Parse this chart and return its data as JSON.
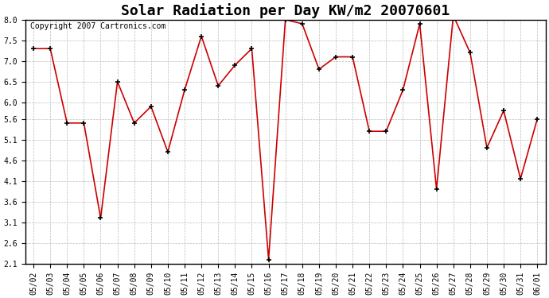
{
  "title": "Solar Radiation per Day KW/m2 20070601",
  "copyright": "Copyright 2007 Cartronics.com",
  "dates": [
    "05/02",
    "05/03",
    "05/04",
    "05/05",
    "05/06",
    "05/07",
    "05/08",
    "05/09",
    "05/10",
    "05/11",
    "05/12",
    "05/13",
    "05/14",
    "05/15",
    "05/16",
    "05/17",
    "05/18",
    "05/19",
    "05/20",
    "05/21",
    "05/22",
    "05/23",
    "05/24",
    "05/25",
    "05/26",
    "05/27",
    "05/28",
    "05/29",
    "05/30",
    "05/31",
    "06/01"
  ],
  "values": [
    7.3,
    7.3,
    5.5,
    5.5,
    3.2,
    6.5,
    5.5,
    5.9,
    4.8,
    6.3,
    7.6,
    6.4,
    6.9,
    7.3,
    2.2,
    8.0,
    7.9,
    6.8,
    7.1,
    7.1,
    5.3,
    5.3,
    6.3,
    7.9,
    3.9,
    8.1,
    7.2,
    4.9,
    5.8,
    4.15,
    5.6
  ],
  "line_color": "#cc0000",
  "bg_color": "#ffffff",
  "grid_color": "#bbbbbb",
  "ylim_min": 2.1,
  "ylim_max": 8.0,
  "yticks": [
    2.1,
    2.6,
    3.1,
    3.6,
    4.1,
    4.6,
    5.1,
    5.6,
    6.0,
    6.5,
    7.0,
    7.5,
    8.0
  ],
  "title_fontsize": 13,
  "copyright_fontsize": 7,
  "tick_fontsize": 7,
  "border_color": "#000000"
}
